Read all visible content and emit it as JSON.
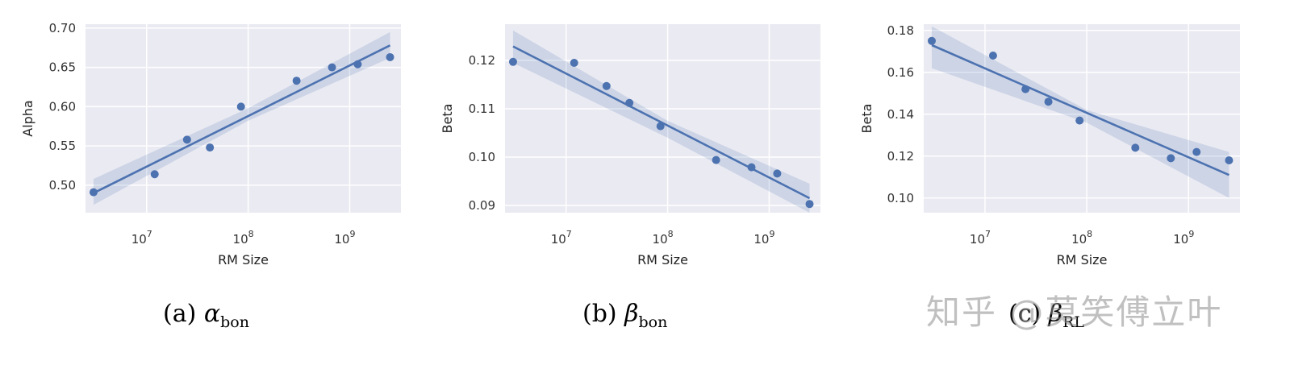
{
  "chart_data": [
    {
      "type": "scatter",
      "panel_caption": {
        "prefix": "(a)",
        "symbol": "α",
        "subscript": "bon"
      },
      "xlabel": "RM Size",
      "ylabel": "Alpha",
      "xscale": "log",
      "xlim": [
        2500000,
        3200000000
      ],
      "ylim": [
        0.465,
        0.705
      ],
      "xticks": [
        {
          "value": 10000000,
          "label": "10^7"
        },
        {
          "value": 100000000,
          "label": "10^8"
        },
        {
          "value": 1000000000,
          "label": "10^9"
        }
      ],
      "yticks": [
        0.5,
        0.55,
        0.6,
        0.65,
        0.7
      ],
      "ytick_labels": [
        "0.50",
        "0.55",
        "0.60",
        "0.65",
        "0.70"
      ],
      "points": [
        {
          "x": 3000000,
          "y": 0.491
        },
        {
          "x": 12000000,
          "y": 0.514
        },
        {
          "x": 25000000,
          "y": 0.558
        },
        {
          "x": 42000000,
          "y": 0.548
        },
        {
          "x": 85000000,
          "y": 0.6
        },
        {
          "x": 300000000,
          "y": 0.633
        },
        {
          "x": 670000000,
          "y": 0.65
        },
        {
          "x": 1200000000,
          "y": 0.654
        },
        {
          "x": 2500000000,
          "y": 0.663
        }
      ],
      "fit_line": {
        "x": [
          3000000,
          2500000000
        ],
        "y": [
          0.49,
          0.678
        ]
      },
      "ci_band": {
        "x": [
          3000000,
          100000000,
          2500000000
        ],
        "lower": [
          0.475,
          0.582,
          0.662
        ],
        "upper": [
          0.508,
          0.598,
          0.695
        ]
      }
    },
    {
      "type": "scatter",
      "panel_caption": {
        "prefix": "(b)",
        "symbol": "β",
        "subscript": "bon"
      },
      "xlabel": "RM Size",
      "ylabel": "Beta",
      "xscale": "log",
      "xlim": [
        2500000,
        3200000000
      ],
      "ylim": [
        0.0885,
        0.1275
      ],
      "xticks": [
        {
          "value": 10000000,
          "label": "10^7"
        },
        {
          "value": 100000000,
          "label": "10^8"
        },
        {
          "value": 1000000000,
          "label": "10^9"
        }
      ],
      "yticks": [
        0.09,
        0.1,
        0.11,
        0.12
      ],
      "ytick_labels": [
        "0.09",
        "0.10",
        "0.11",
        "0.12"
      ],
      "points": [
        {
          "x": 3000000,
          "y": 0.1197
        },
        {
          "x": 12000000,
          "y": 0.1195
        },
        {
          "x": 25000000,
          "y": 0.1147
        },
        {
          "x": 42000000,
          "y": 0.1112
        },
        {
          "x": 85000000,
          "y": 0.1064
        },
        {
          "x": 300000000,
          "y": 0.0994
        },
        {
          "x": 670000000,
          "y": 0.0979
        },
        {
          "x": 1200000000,
          "y": 0.0966
        },
        {
          "x": 2500000000,
          "y": 0.0903
        }
      ],
      "fit_line": {
        "x": [
          3000000,
          2500000000
        ],
        "y": [
          0.1229,
          0.0915
        ]
      },
      "ci_band": {
        "x": [
          3000000,
          100000000,
          2500000000
        ],
        "lower": [
          0.1195,
          0.104,
          0.0885
        ],
        "upper": [
          0.1262,
          0.1075,
          0.0945
        ]
      }
    },
    {
      "type": "scatter",
      "panel_caption": {
        "prefix": "(c)",
        "symbol": "β",
        "subscript": "RL"
      },
      "xlabel": "RM Size",
      "ylabel": "Beta",
      "xscale": "log",
      "xlim": [
        2500000,
        3200000000
      ],
      "ylim": [
        0.093,
        0.183
      ],
      "xticks": [
        {
          "value": 10000000,
          "label": "10^7"
        },
        {
          "value": 100000000,
          "label": "10^8"
        },
        {
          "value": 1000000000,
          "label": "10^9"
        }
      ],
      "yticks": [
        0.1,
        0.12,
        0.14,
        0.16,
        0.18
      ],
      "ytick_labels": [
        "0.10",
        "0.12",
        "0.14",
        "0.16",
        "0.18"
      ],
      "points": [
        {
          "x": 3000000,
          "y": 0.175
        },
        {
          "x": 12000000,
          "y": 0.168
        },
        {
          "x": 25000000,
          "y": 0.152
        },
        {
          "x": 42000000,
          "y": 0.146
        },
        {
          "x": 85000000,
          "y": 0.137
        },
        {
          "x": 300000000,
          "y": 0.124
        },
        {
          "x": 670000000,
          "y": 0.119
        },
        {
          "x": 1200000000,
          "y": 0.122
        },
        {
          "x": 2500000000,
          "y": 0.118
        }
      ],
      "fit_line": {
        "x": [
          3000000,
          2500000000
        ],
        "y": [
          0.173,
          0.111
        ]
      },
      "ci_band": {
        "x": [
          3000000,
          100000000,
          2500000000
        ],
        "lower": [
          0.162,
          0.136,
          0.1
        ],
        "upper": [
          0.182,
          0.142,
          0.122
        ]
      }
    }
  ],
  "style": {
    "plot_bg": "#eaeaf2",
    "grid": "#ffffff",
    "series_color": "#4c72b0",
    "band_color": "#4c72b0"
  },
  "watermark": "知乎 @莫笑傅立叶"
}
